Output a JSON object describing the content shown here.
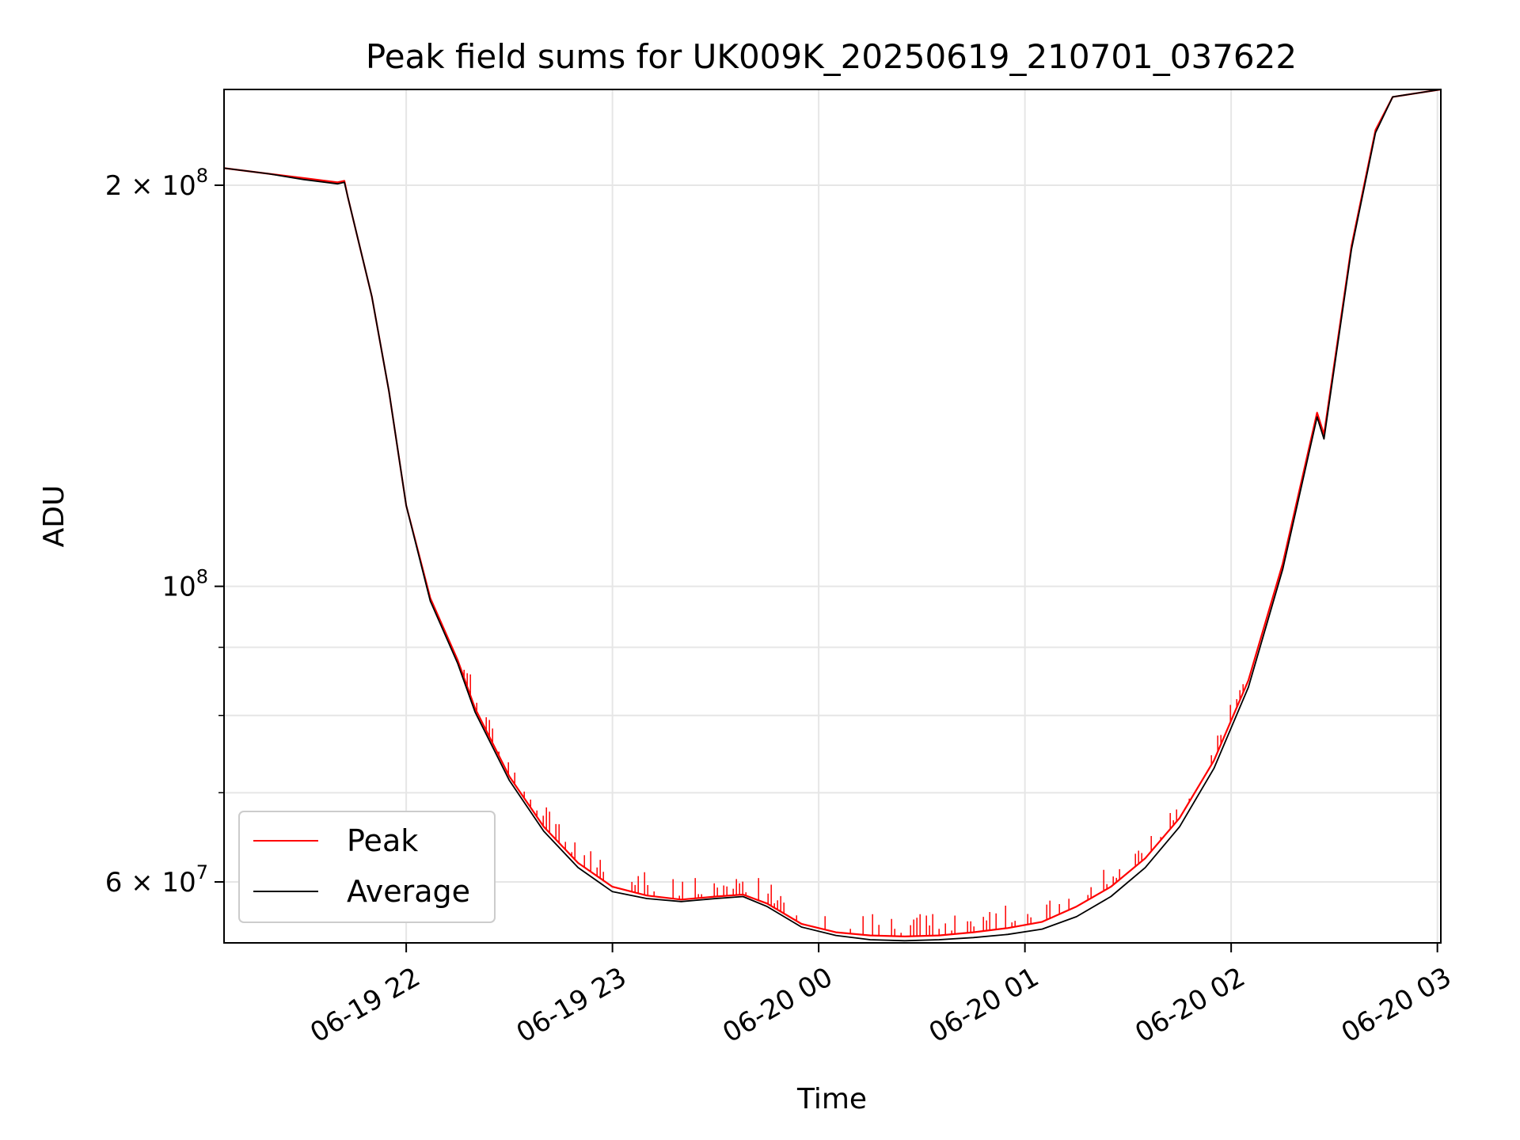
{
  "chart_data": {
    "type": "line",
    "title": "Peak field sums for UK009K_20250619_210701_037622",
    "xlabel": "Time",
    "ylabel": "ADU",
    "x_axis": {
      "kind": "datetime",
      "range": [
        "2025-06-19 21:07",
        "2025-06-20 03:01"
      ],
      "ticks": [
        {
          "value": "2025-06-19 22:00",
          "label": "06-19 22"
        },
        {
          "value": "2025-06-19 23:00",
          "label": "06-19 23"
        },
        {
          "value": "2025-06-20 00:00",
          "label": "06-20 00"
        },
        {
          "value": "2025-06-20 01:00",
          "label": "06-20 01"
        },
        {
          "value": "2025-06-20 02:00",
          "label": "06-20 02"
        },
        {
          "value": "2025-06-20 03:00",
          "label": "06-20 03"
        }
      ]
    },
    "y_axis": {
      "scale": "log",
      "range": [
        54000000,
        236000000
      ],
      "major_ticks": [
        {
          "value": 60000000,
          "base": "6 × 10",
          "exp": "7"
        },
        {
          "value": 100000000,
          "base": "10",
          "exp": "8"
        },
        {
          "value": 200000000,
          "base": "2 × 10",
          "exp": "8"
        }
      ],
      "minor_ticks": [
        70000000,
        80000000,
        90000000
      ]
    },
    "grid": true,
    "legend": {
      "placement": "lower-left",
      "entries": [
        "Peak",
        "Average"
      ]
    },
    "series": [
      {
        "name": "Peak",
        "color": "#ff0000",
        "points": [
          [
            "2025-06-19 21:07",
            206000000
          ],
          [
            "2025-06-19 21:20",
            204000000
          ],
          [
            "2025-06-19 21:30",
            202500000
          ],
          [
            "2025-06-19 21:40",
            201000000
          ],
          [
            "2025-06-19 21:42",
            201500000
          ],
          [
            "2025-06-19 21:43",
            196000000
          ],
          [
            "2025-06-19 21:50",
            165000000
          ],
          [
            "2025-06-19 21:55",
            140000000
          ],
          [
            "2025-06-19 22:00",
            115000000
          ],
          [
            "2025-06-19 22:07",
            98000000
          ],
          [
            "2025-06-19 22:15",
            88000000
          ],
          [
            "2025-06-19 22:20",
            81000000
          ],
          [
            "2025-06-19 22:30",
            72000000
          ],
          [
            "2025-06-19 22:40",
            66000000
          ],
          [
            "2025-06-19 22:50",
            62000000
          ],
          [
            "2025-06-19 23:00",
            59500000
          ],
          [
            "2025-06-19 23:10",
            58600000
          ],
          [
            "2025-06-19 23:20",
            58200000
          ],
          [
            "2025-06-19 23:30",
            58500000
          ],
          [
            "2025-06-19 23:38",
            58700000
          ],
          [
            "2025-06-19 23:45",
            57800000
          ],
          [
            "2025-06-19 23:55",
            55800000
          ],
          [
            "2025-06-20 00:05",
            55000000
          ],
          [
            "2025-06-20 00:15",
            54700000
          ],
          [
            "2025-06-20 00:25",
            54600000
          ],
          [
            "2025-06-20 00:35",
            54700000
          ],
          [
            "2025-06-20 00:45",
            55000000
          ],
          [
            "2025-06-20 00:55",
            55400000
          ],
          [
            "2025-06-20 01:05",
            56000000
          ],
          [
            "2025-06-20 01:15",
            57500000
          ],
          [
            "2025-06-20 01:25",
            59500000
          ],
          [
            "2025-06-20 01:35",
            62500000
          ],
          [
            "2025-06-20 01:45",
            67000000
          ],
          [
            "2025-06-20 01:55",
            74000000
          ],
          [
            "2025-06-20 02:05",
            85000000
          ],
          [
            "2025-06-20 02:15",
            104000000
          ],
          [
            "2025-06-20 02:25",
            135000000
          ],
          [
            "2025-06-20 02:27",
            130000000
          ],
          [
            "2025-06-20 02:35",
            180000000
          ],
          [
            "2025-06-20 02:42",
            220000000
          ],
          [
            "2025-06-20 02:47",
            233000000
          ],
          [
            "2025-06-20 03:01",
            236000000
          ]
        ]
      },
      {
        "name": "Average",
        "color": "#000000",
        "points": [
          [
            "2025-06-19 21:07",
            206000000
          ],
          [
            "2025-06-19 21:20",
            204000000
          ],
          [
            "2025-06-19 21:30",
            202000000
          ],
          [
            "2025-06-19 21:40",
            200500000
          ],
          [
            "2025-06-19 21:42",
            201000000
          ],
          [
            "2025-06-19 21:43",
            196000000
          ],
          [
            "2025-06-19 21:50",
            165000000
          ],
          [
            "2025-06-19 21:55",
            140000000
          ],
          [
            "2025-06-19 22:00",
            115000000
          ],
          [
            "2025-06-19 22:07",
            97500000
          ],
          [
            "2025-06-19 22:15",
            87500000
          ],
          [
            "2025-06-19 22:20",
            80500000
          ],
          [
            "2025-06-19 22:30",
            71500000
          ],
          [
            "2025-06-19 22:40",
            65500000
          ],
          [
            "2025-06-19 22:50",
            61500000
          ],
          [
            "2025-06-19 23:00",
            59000000
          ],
          [
            "2025-06-19 23:10",
            58300000
          ],
          [
            "2025-06-19 23:20",
            58000000
          ],
          [
            "2025-06-19 23:30",
            58300000
          ],
          [
            "2025-06-19 23:38",
            58500000
          ],
          [
            "2025-06-19 23:45",
            57500000
          ],
          [
            "2025-06-19 23:55",
            55500000
          ],
          [
            "2025-06-20 00:05",
            54700000
          ],
          [
            "2025-06-20 00:15",
            54300000
          ],
          [
            "2025-06-20 00:25",
            54200000
          ],
          [
            "2025-06-20 00:35",
            54300000
          ],
          [
            "2025-06-20 00:45",
            54500000
          ],
          [
            "2025-06-20 00:55",
            54800000
          ],
          [
            "2025-06-20 01:05",
            55300000
          ],
          [
            "2025-06-20 01:15",
            56500000
          ],
          [
            "2025-06-20 01:25",
            58500000
          ],
          [
            "2025-06-20 01:35",
            61500000
          ],
          [
            "2025-06-20 01:45",
            66000000
          ],
          [
            "2025-06-20 01:55",
            73000000
          ],
          [
            "2025-06-20 02:05",
            84000000
          ],
          [
            "2025-06-20 02:15",
            103000000
          ],
          [
            "2025-06-20 02:25",
            134000000
          ],
          [
            "2025-06-20 02:27",
            129000000
          ],
          [
            "2025-06-20 02:35",
            179000000
          ],
          [
            "2025-06-20 02:42",
            219000000
          ],
          [
            "2025-06-20 02:47",
            233000000
          ],
          [
            "2025-06-20 03:01",
            236000000
          ]
        ]
      }
    ]
  }
}
